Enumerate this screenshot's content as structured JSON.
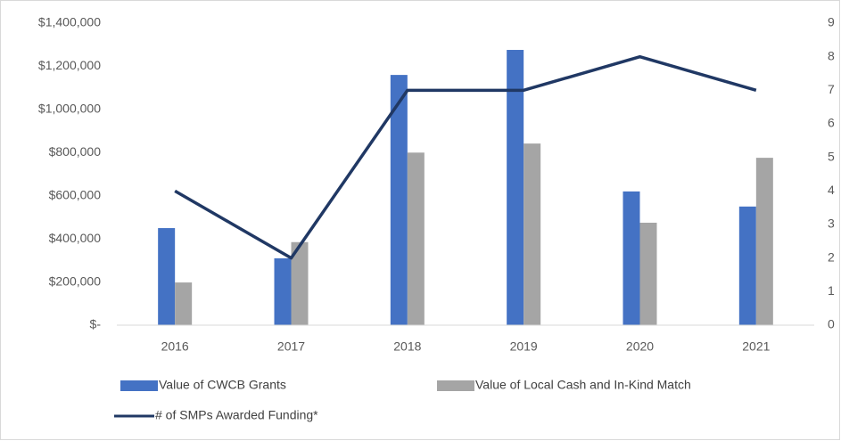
{
  "chart_data": {
    "type": "bar",
    "categories": [
      "2016",
      "2017",
      "2018",
      "2019",
      "2020",
      "2021"
    ],
    "series": [
      {
        "name": "Value of CWCB Grants",
        "color": "#4472c4",
        "values": [
          450000,
          310000,
          1160000,
          1276000,
          620000,
          550000
        ]
      },
      {
        "name": "Value of Local Cash and In-Kind Match",
        "color": "#a5a5a5",
        "values": [
          198000,
          385000,
          800000,
          842000,
          475000,
          776000
        ]
      },
      {
        "name": "# of SMPs Awarded Funding*",
        "color": "#203864",
        "type": "line",
        "axis": "y2",
        "values": [
          4,
          2,
          7,
          7,
          8,
          7
        ]
      }
    ],
    "ylim": [
      0,
      1400000
    ],
    "yticks": [
      {
        "value": 0,
        "label": "$-"
      },
      {
        "value": 200000,
        "label": "$200,000"
      },
      {
        "value": 400000,
        "label": "$400,000"
      },
      {
        "value": 600000,
        "label": "$600,000"
      },
      {
        "value": 800000,
        "label": "$800,000"
      },
      {
        "value": 1000000,
        "label": "$1,000,000"
      },
      {
        "value": 1200000,
        "label": "$1,200,000"
      },
      {
        "value": 1400000,
        "label": "$1,400,000"
      }
    ],
    "y2lim": [
      0,
      9
    ],
    "y2ticks": [
      0,
      1,
      2,
      3,
      4,
      5,
      6,
      7,
      8,
      9
    ],
    "grid": false
  }
}
